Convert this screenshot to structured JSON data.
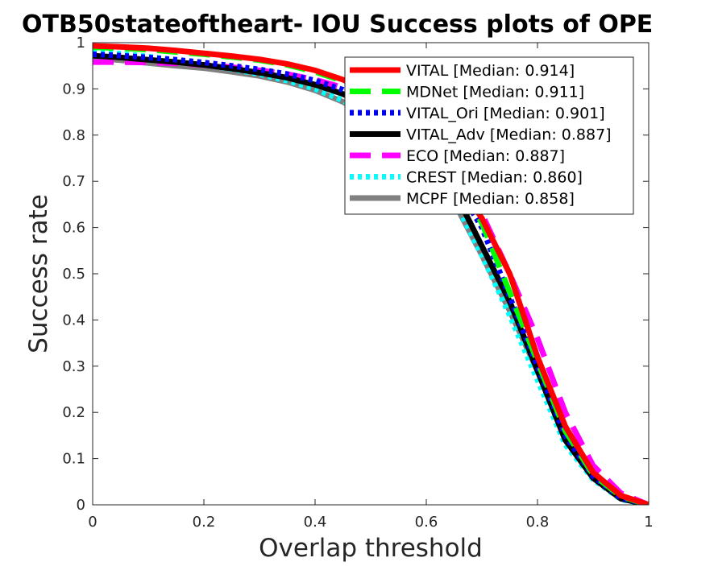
{
  "chart_data": {
    "type": "line",
    "title": "OTB50stateoftheart- IOU Success plots of OPE",
    "xlabel": "Overlap threshold",
    "ylabel": "Success rate",
    "xlim": [
      0,
      1
    ],
    "ylim": [
      0,
      1
    ],
    "xticks": [
      "0",
      "0.2",
      "0.4",
      "0.6",
      "0.8",
      "1"
    ],
    "yticks": [
      "0",
      "0.1",
      "0.2",
      "0.3",
      "0.4",
      "0.5",
      "0.6",
      "0.7",
      "0.8",
      "0.9",
      "1"
    ],
    "grid": false,
    "legend_position": "top-right",
    "x": [
      0,
      0.05,
      0.1,
      0.15,
      0.2,
      0.25,
      0.3,
      0.35,
      0.4,
      0.45,
      0.5,
      0.55,
      0.6,
      0.65,
      0.7,
      0.75,
      0.8,
      0.85,
      0.9,
      0.95,
      1.0
    ],
    "series": [
      {
        "name": "VITAL [Median: 0.914]",
        "color": "#ff0000",
        "dash": "solid",
        "values": [
          0.993,
          0.991,
          0.988,
          0.983,
          0.977,
          0.971,
          0.964,
          0.954,
          0.94,
          0.92,
          0.89,
          0.85,
          0.79,
          0.71,
          0.62,
          0.5,
          0.32,
          0.17,
          0.07,
          0.02,
          0.0
        ]
      },
      {
        "name": "MDNet [Median: 0.911]",
        "color": "#00ff00",
        "dash": "longdash",
        "values": [
          0.99,
          0.988,
          0.985,
          0.98,
          0.975,
          0.969,
          0.962,
          0.952,
          0.937,
          0.917,
          0.888,
          0.848,
          0.788,
          0.708,
          0.61,
          0.46,
          0.31,
          0.16,
          0.065,
          0.018,
          0.0
        ]
      },
      {
        "name": "VITAL_Ori [Median: 0.901]",
        "color": "#0000ff",
        "dash": "dotted",
        "values": [
          0.975,
          0.972,
          0.968,
          0.963,
          0.957,
          0.95,
          0.942,
          0.932,
          0.918,
          0.898,
          0.87,
          0.832,
          0.775,
          0.7,
          0.6,
          0.45,
          0.3,
          0.15,
          0.062,
          0.015,
          0.0
        ]
      },
      {
        "name": "VITAL_Adv [Median: 0.887]",
        "color": "#000000",
        "dash": "solid",
        "values": [
          0.972,
          0.968,
          0.963,
          0.958,
          0.952,
          0.944,
          0.935,
          0.924,
          0.909,
          0.889,
          0.86,
          0.82,
          0.76,
          0.68,
          0.56,
          0.44,
          0.29,
          0.14,
          0.058,
          0.013,
          0.0
        ]
      },
      {
        "name": "ECO [Median: 0.887]",
        "color": "#ff00ff",
        "dash": "longdash",
        "values": [
          0.958,
          0.958,
          0.957,
          0.955,
          0.952,
          0.947,
          0.94,
          0.932,
          0.92,
          0.903,
          0.878,
          0.845,
          0.795,
          0.72,
          0.63,
          0.5,
          0.36,
          0.2,
          0.085,
          0.025,
          0.0
        ]
      },
      {
        "name": "CREST [Median: 0.860]",
        "color": "#00ffff",
        "dash": "dotted",
        "values": [
          0.98,
          0.976,
          0.97,
          0.962,
          0.953,
          0.943,
          0.932,
          0.918,
          0.9,
          0.875,
          0.842,
          0.8,
          0.74,
          0.66,
          0.54,
          0.41,
          0.27,
          0.13,
          0.055,
          0.012,
          0.0
        ]
      },
      {
        "name": "MCPF [Median: 0.858]",
        "color": "#808080",
        "dash": "solid",
        "values": [
          0.967,
          0.962,
          0.956,
          0.95,
          0.945,
          0.937,
          0.928,
          0.915,
          0.897,
          0.872,
          0.838,
          0.795,
          0.735,
          0.655,
          0.54,
          0.42,
          0.29,
          0.15,
          0.065,
          0.018,
          0.0
        ]
      }
    ]
  }
}
